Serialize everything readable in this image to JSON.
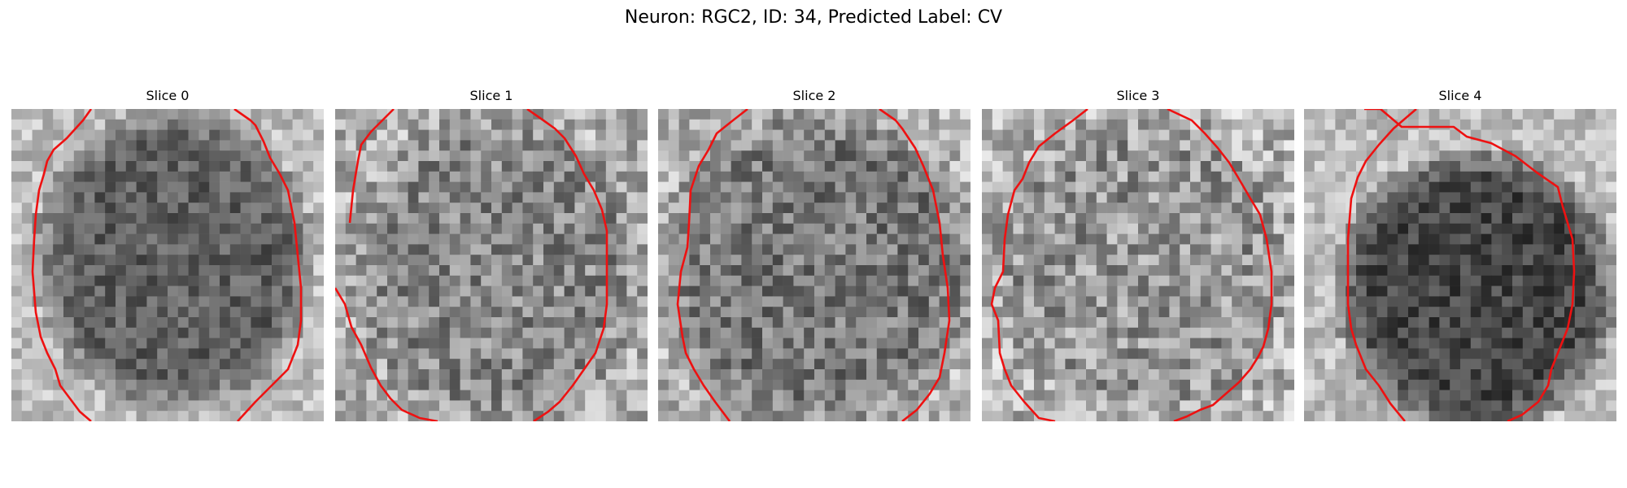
{
  "figure": {
    "title": "Neuron: RGC2, ID: 34, Predicted Label: CV",
    "contour_color": "#ee1111",
    "panels": [
      {
        "title": "Slice 0",
        "icon": "grayscale-microscopy-slice-with-red-contour"
      },
      {
        "title": "Slice 1",
        "icon": "grayscale-microscopy-slice-with-red-contour"
      },
      {
        "title": "Slice 2",
        "icon": "grayscale-microscopy-slice-with-red-contour"
      },
      {
        "title": "Slice 3",
        "icon": "grayscale-microscopy-slice-with-red-contour"
      },
      {
        "title": "Slice 4",
        "icon": "grayscale-microscopy-slice-with-red-contour"
      }
    ]
  }
}
